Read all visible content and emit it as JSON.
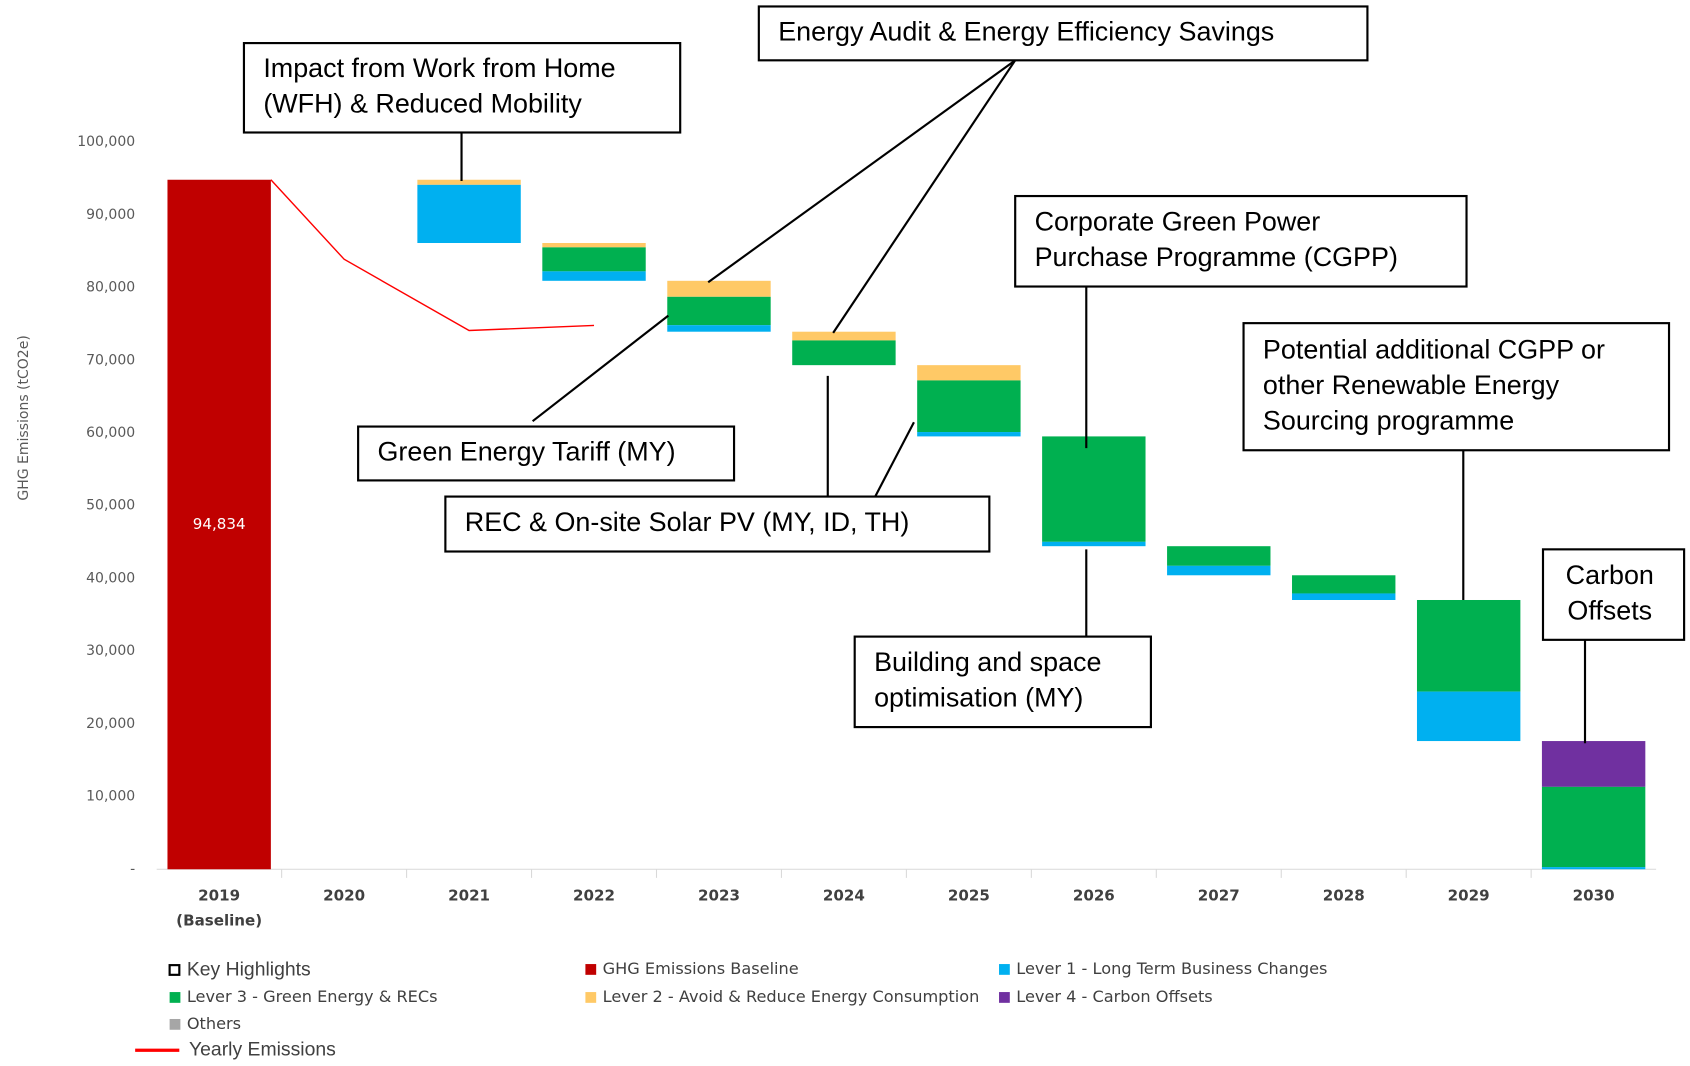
{
  "chart_data": {
    "type": "waterfall",
    "y_label": "GHG Emissions (tCO2e)",
    "categories": [
      "2019",
      "2020",
      "2021",
      "2022",
      "2023",
      "2024",
      "2025",
      "2026",
      "2027",
      "2028",
      "2029",
      "2030"
    ],
    "category_note": "(Baseline)",
    "ylim": [
      0,
      100000
    ],
    "yticks": [
      {
        "value": 0,
        "label": "-"
      },
      {
        "value": 10000,
        "label": "10,000"
      },
      {
        "value": 20000,
        "label": "20,000"
      },
      {
        "value": 30000,
        "label": "30,000"
      },
      {
        "value": 40000,
        "label": "40,000"
      },
      {
        "value": 50000,
        "label": "50,000"
      },
      {
        "value": 60000,
        "label": "60,000"
      },
      {
        "value": 70000,
        "label": "70,000"
      },
      {
        "value": 80000,
        "label": "80,000"
      },
      {
        "value": 90000,
        "label": "90,000"
      },
      {
        "value": 100000,
        "label": "100,000"
      }
    ],
    "highlight_legend": "Key Highlights",
    "series": [
      {
        "name": "GHG Emissions Baseline",
        "color": "#c00000",
        "role": "baseline",
        "values": [
          94834,
          null,
          null,
          null,
          null,
          null,
          null,
          null,
          null,
          null,
          null,
          null
        ],
        "value_labels": [
          "94,834",
          null,
          null,
          null,
          null,
          null,
          null,
          null,
          null,
          null,
          null,
          null
        ]
      },
      {
        "name": "Lever 1 - Long Term Business Changes",
        "color": "#00b0f0",
        "values": [
          null,
          null,
          8000,
          1300,
          900,
          null,
          600,
          600,
          1300,
          900,
          6800,
          300
        ]
      },
      {
        "name": "Lever 3 - Green Energy & RECs",
        "color": "#00b050",
        "values": [
          null,
          null,
          null,
          3300,
          3900,
          3400,
          7100,
          14500,
          2700,
          2500,
          12600,
          11034
        ]
      },
      {
        "name": "Lever 2 - Avoid & Reduce Energy Consumption",
        "color": "#ffc966",
        "values": [
          null,
          null,
          700,
          600,
          2200,
          1200,
          2100,
          null,
          null,
          null,
          null,
          null
        ]
      },
      {
        "name": "Lever 4 - Carbon Offsets",
        "color": "#7030a0",
        "values": [
          null,
          null,
          null,
          null,
          null,
          null,
          null,
          null,
          null,
          null,
          null,
          6300
        ]
      },
      {
        "name": "Others",
        "color": "#a6a6a6",
        "values": [
          null,
          null,
          null,
          null,
          null,
          null,
          null,
          null,
          null,
          null,
          null,
          null
        ]
      },
      {
        "name": "Yearly Emissions",
        "color": "#ff0000",
        "role": "line",
        "values": [
          94834,
          83900,
          74100,
          74800,
          null,
          null,
          null,
          null,
          null,
          null,
          null,
          null
        ]
      }
    ],
    "annotations": [
      {
        "text": [
          "Impact from Work from Home",
          "(WFH) & Reduced Mobility"
        ]
      },
      {
        "text": [
          "Energy Audit & Energy Efficiency Savings"
        ]
      },
      {
        "text": [
          "Green Energy Tariff (MY)"
        ]
      },
      {
        "text": [
          "REC & On-site Solar PV (MY, ID, TH)"
        ]
      },
      {
        "text": [
          "Corporate Green Power",
          "Purchase Programme (CGPP)"
        ]
      },
      {
        "text": [
          "Building and space",
          "optimisation (MY)"
        ]
      },
      {
        "text": [
          "Potential additional CGPP or",
          "other Renewable Energy",
          "Sourcing programme"
        ]
      },
      {
        "text": [
          "Carbon",
          "Offsets"
        ]
      }
    ]
  }
}
